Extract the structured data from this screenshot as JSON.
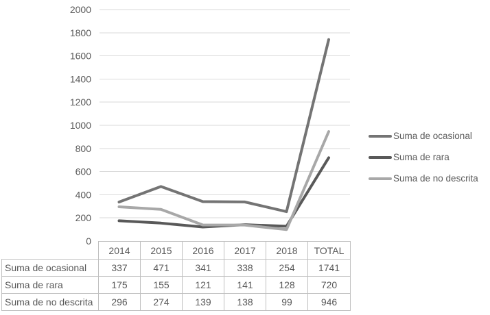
{
  "chart_data": {
    "type": "line",
    "title": "",
    "categories": [
      "2014",
      "2015",
      "2016",
      "2017",
      "2018",
      "TOTAL"
    ],
    "series": [
      {
        "name": "Suma de ocasional",
        "values": [
          337,
          471,
          341,
          338,
          254,
          1741
        ],
        "color": "#747474"
      },
      {
        "name": "Suma de rara",
        "values": [
          175,
          155,
          121,
          141,
          128,
          720
        ],
        "color": "#595959"
      },
      {
        "name": "Suma de no descrita",
        "values": [
          296,
          274,
          139,
          138,
          99,
          946
        ],
        "color": "#a8a8a8"
      }
    ],
    "ylim": [
      0,
      2000
    ],
    "ytick_step": 200,
    "yticklabels": [
      "0",
      "200",
      "400",
      "600",
      "800",
      "1000",
      "1200",
      "1400",
      "1600",
      "1800",
      "2000"
    ],
    "grid": true,
    "legend_position": "right",
    "gridline_color": "#d9d9d9",
    "axis_label_color": "#595959"
  },
  "table": {
    "column_headers": [
      "2014",
      "2015",
      "2016",
      "2017",
      "2018",
      "TOTAL"
    ],
    "rows": [
      {
        "label": "Suma de ocasional",
        "values": [
          "337",
          "471",
          "341",
          "338",
          "254",
          "1741"
        ]
      },
      {
        "label": "Suma de rara",
        "values": [
          "175",
          "155",
          "121",
          "141",
          "128",
          "720"
        ]
      },
      {
        "label": "Suma de no descrita",
        "values": [
          "296",
          "274",
          "139",
          "138",
          "99",
          "946"
        ]
      }
    ],
    "border_color": "#bfbfbf",
    "text_color": "#595959"
  }
}
